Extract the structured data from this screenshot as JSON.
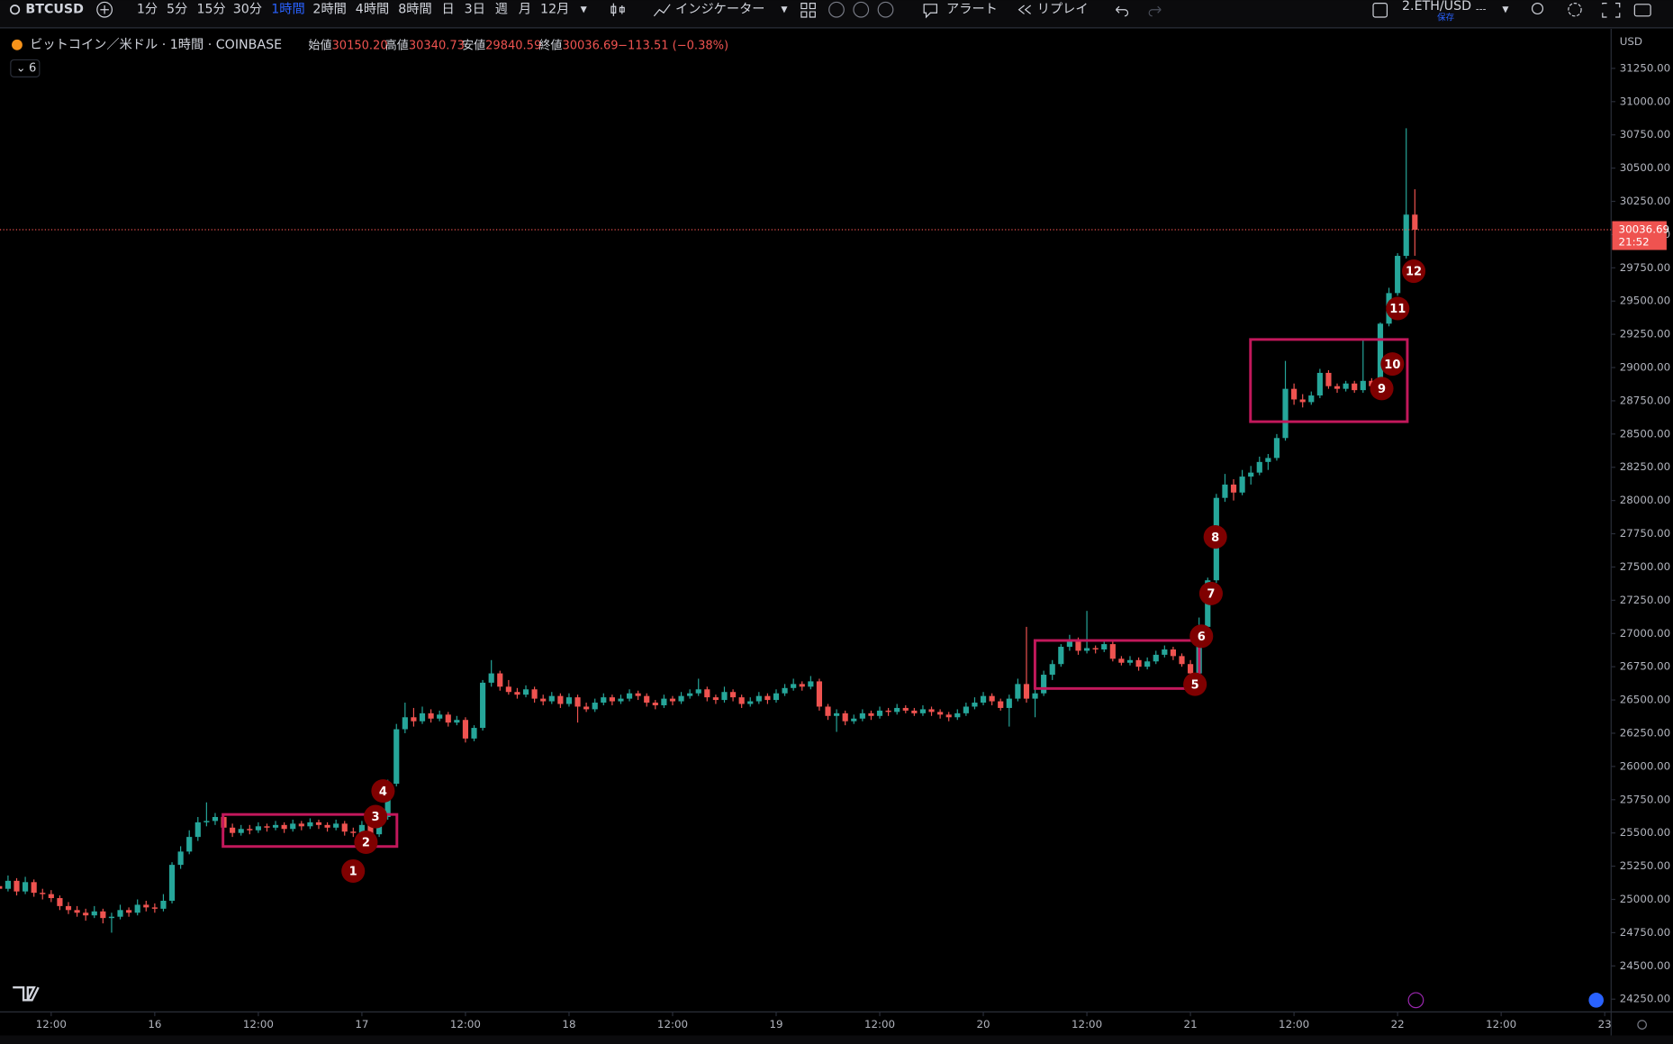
{
  "toolbar": {
    "symbol": "BTCUSD",
    "intervals": [
      "1分",
      "5分",
      "15分",
      "30分",
      "1時間",
      "2時間",
      "4時間",
      "8時間",
      "日",
      "3日",
      "週",
      "月",
      "12月"
    ],
    "indicators": "インジケーター",
    "alert": "アラート",
    "replay": "リプレイ",
    "layout": "2.ETH/USD",
    "save": "保存",
    "more": "---"
  },
  "legend": {
    "title": "ビットコイン／米ドル · 1時間 · COINBASE",
    "open_label": "始値",
    "open": "30150.20",
    "high_label": "高値",
    "high": "30340.73",
    "low_label": "安値",
    "low": "29840.59",
    "close_label": "終値",
    "close": "30036.69",
    "change": "−113.51 (−0.38%)",
    "indicator_count": "6"
  },
  "price_axis": {
    "currency": "USD",
    "last_price": "30036.69",
    "countdown": "21:52"
  },
  "chart_data": {
    "type": "candlestick",
    "up_color": "#26a69a",
    "down_color": "#ef5350",
    "ohlc": [
      [
        25100,
        25140,
        25020,
        25080
      ],
      [
        25080,
        25180,
        25060,
        25140
      ],
      [
        25140,
        25160,
        25030,
        25060
      ],
      [
        25060,
        25170,
        25040,
        25130
      ],
      [
        25130,
        25150,
        25020,
        25050
      ],
      [
        25050,
        25080,
        25000,
        25040
      ],
      [
        25040,
        25070,
        24980,
        25010
      ],
      [
        25010,
        25030,
        24920,
        24950
      ],
      [
        24950,
        24980,
        24890,
        24920
      ],
      [
        24920,
        24950,
        24870,
        24900
      ],
      [
        24900,
        24930,
        24840,
        24880
      ],
      [
        24880,
        24950,
        24860,
        24910
      ],
      [
        24910,
        24930,
        24820,
        24860
      ],
      [
        24860,
        24900,
        24750,
        24870
      ],
      [
        24870,
        24960,
        24850,
        24920
      ],
      [
        24920,
        24940,
        24870,
        24900
      ],
      [
        24900,
        25000,
        24880,
        24960
      ],
      [
        24960,
        24990,
        24910,
        24940
      ],
      [
        24940,
        24970,
        24900,
        24930
      ],
      [
        24930,
        25040,
        24910,
        24990
      ],
      [
        24990,
        25280,
        24970,
        25260
      ],
      [
        25260,
        25400,
        25230,
        25360
      ],
      [
        25360,
        25520,
        25340,
        25470
      ],
      [
        25470,
        25620,
        25440,
        25580
      ],
      [
        25580,
        25730,
        25550,
        25590
      ],
      [
        25590,
        25650,
        25560,
        25620
      ],
      [
        25620,
        25640,
        25510,
        25540
      ],
      [
        25540,
        25570,
        25470,
        25500
      ],
      [
        25500,
        25560,
        25480,
        25530
      ],
      [
        25530,
        25560,
        25490,
        25520
      ],
      [
        25520,
        25580,
        25500,
        25550
      ],
      [
        25550,
        25570,
        25510,
        25540
      ],
      [
        25540,
        25590,
        25520,
        25560
      ],
      [
        25560,
        25580,
        25500,
        25530
      ],
      [
        25530,
        25600,
        25510,
        25570
      ],
      [
        25570,
        25590,
        25520,
        25550
      ],
      [
        25550,
        25610,
        25530,
        25580
      ],
      [
        25580,
        25600,
        25530,
        25560
      ],
      [
        25560,
        25580,
        25510,
        25540
      ],
      [
        25540,
        25600,
        25520,
        25570
      ],
      [
        25570,
        25590,
        25480,
        25510
      ],
      [
        25510,
        25540,
        25470,
        25500
      ],
      [
        25500,
        25590,
        25480,
        25560
      ],
      [
        25560,
        25580,
        25460,
        25490
      ],
      [
        25490,
        25660,
        25470,
        25620
      ],
      [
        25620,
        25900,
        25600,
        25870
      ],
      [
        25870,
        26320,
        25850,
        26280
      ],
      [
        26280,
        26480,
        26250,
        26370
      ],
      [
        26370,
        26440,
        26300,
        26340
      ],
      [
        26340,
        26450,
        26320,
        26400
      ],
      [
        26400,
        26430,
        26330,
        26360
      ],
      [
        26360,
        26420,
        26340,
        26390
      ],
      [
        26390,
        26410,
        26300,
        26330
      ],
      [
        26330,
        26380,
        26310,
        26350
      ],
      [
        26350,
        26370,
        26180,
        26210
      ],
      [
        26210,
        26310,
        26190,
        26290
      ],
      [
        26290,
        26650,
        26270,
        26630
      ],
      [
        26630,
        26800,
        26600,
        26700
      ],
      [
        26700,
        26720,
        26570,
        26600
      ],
      [
        26600,
        26650,
        26540,
        26560
      ],
      [
        26560,
        26590,
        26510,
        26540
      ],
      [
        26540,
        26610,
        26520,
        26580
      ],
      [
        26580,
        26600,
        26480,
        26510
      ],
      [
        26510,
        26540,
        26460,
        26490
      ],
      [
        26490,
        26560,
        26470,
        26530
      ],
      [
        26530,
        26550,
        26440,
        26470
      ],
      [
        26470,
        26550,
        26450,
        26520
      ],
      [
        26520,
        26540,
        26330,
        26450
      ],
      [
        26450,
        26480,
        26410,
        26430
      ],
      [
        26430,
        26510,
        26410,
        26480
      ],
      [
        26480,
        26550,
        26460,
        26520
      ],
      [
        26520,
        26540,
        26460,
        26490
      ],
      [
        26490,
        26540,
        26470,
        26510
      ],
      [
        26510,
        26580,
        26490,
        26550
      ],
      [
        26550,
        26570,
        26500,
        26530
      ],
      [
        26530,
        26550,
        26450,
        26480
      ],
      [
        26480,
        26500,
        26430,
        26460
      ],
      [
        26460,
        26540,
        26440,
        26510
      ],
      [
        26510,
        26530,
        26460,
        26490
      ],
      [
        26490,
        26560,
        26470,
        26530
      ],
      [
        26530,
        26580,
        26510,
        26550
      ],
      [
        26550,
        26660,
        26530,
        26580
      ],
      [
        26580,
        26600,
        26490,
        26520
      ],
      [
        26520,
        26540,
        26470,
        26500
      ],
      [
        26500,
        26600,
        26480,
        26560
      ],
      [
        26560,
        26580,
        26490,
        26520
      ],
      [
        26520,
        26540,
        26440,
        26470
      ],
      [
        26470,
        26520,
        26450,
        26490
      ],
      [
        26490,
        26560,
        26470,
        26530
      ],
      [
        26530,
        26550,
        26470,
        26500
      ],
      [
        26500,
        26580,
        26480,
        26550
      ],
      [
        26550,
        26620,
        26530,
        26590
      ],
      [
        26590,
        26660,
        26570,
        26620
      ],
      [
        26620,
        26640,
        26570,
        26600
      ],
      [
        26600,
        26680,
        26580,
        26640
      ],
      [
        26640,
        26660,
        26420,
        26450
      ],
      [
        26450,
        26470,
        26350,
        26380
      ],
      [
        26380,
        26430,
        26260,
        26400
      ],
      [
        26400,
        26420,
        26310,
        26340
      ],
      [
        26340,
        26390,
        26320,
        26360
      ],
      [
        26360,
        26430,
        26340,
        26400
      ],
      [
        26400,
        26420,
        26350,
        26380
      ],
      [
        26380,
        26450,
        26360,
        26420
      ],
      [
        26420,
        26440,
        26380,
        26410
      ],
      [
        26410,
        26470,
        26390,
        26440
      ],
      [
        26440,
        26460,
        26400,
        26420
      ],
      [
        26420,
        26440,
        26380,
        26400
      ],
      [
        26400,
        26460,
        26380,
        26430
      ],
      [
        26430,
        26450,
        26380,
        26410
      ],
      [
        26410,
        26430,
        26360,
        26390
      ],
      [
        26390,
        26410,
        26340,
        26370
      ],
      [
        26370,
        26430,
        26350,
        26400
      ],
      [
        26400,
        26480,
        26380,
        26450
      ],
      [
        26450,
        26520,
        26430,
        26480
      ],
      [
        26480,
        26560,
        26460,
        26530
      ],
      [
        26530,
        26550,
        26460,
        26490
      ],
      [
        26490,
        26510,
        26420,
        26440
      ],
      [
        26440,
        26540,
        26300,
        26510
      ],
      [
        26510,
        26660,
        26490,
        26620
      ],
      [
        26620,
        27050,
        26480,
        26510
      ],
      [
        26510,
        26580,
        26370,
        26550
      ],
      [
        26550,
        26720,
        26530,
        26690
      ],
      [
        26690,
        26800,
        26650,
        26770
      ],
      [
        26770,
        26920,
        26750,
        26900
      ],
      [
        26900,
        26990,
        26870,
        26950
      ],
      [
        26950,
        26970,
        26840,
        26870
      ],
      [
        26870,
        27170,
        26850,
        26890
      ],
      [
        26890,
        26910,
        26850,
        26880
      ],
      [
        26880,
        26950,
        26860,
        26920
      ],
      [
        26920,
        26940,
        26790,
        26810
      ],
      [
        26810,
        26830,
        26760,
        26780
      ],
      [
        26780,
        26830,
        26760,
        26800
      ],
      [
        26800,
        26820,
        26720,
        26750
      ],
      [
        26750,
        26820,
        26730,
        26790
      ],
      [
        26790,
        26870,
        26770,
        26840
      ],
      [
        26840,
        26910,
        26820,
        26880
      ],
      [
        26880,
        26900,
        26800,
        26830
      ],
      [
        26830,
        26850,
        26750,
        26770
      ],
      [
        26770,
        26800,
        26660,
        26700
      ],
      [
        26700,
        27120,
        26680,
        27050
      ],
      [
        27050,
        27420,
        27020,
        27400
      ],
      [
        27400,
        28050,
        27380,
        28020
      ],
      [
        28020,
        28200,
        27990,
        28120
      ],
      [
        28120,
        28160,
        28000,
        28060
      ],
      [
        28060,
        28230,
        28040,
        28180
      ],
      [
        28180,
        28260,
        28120,
        28210
      ],
      [
        28210,
        28330,
        28190,
        28290
      ],
      [
        28290,
        28350,
        28230,
        28320
      ],
      [
        28320,
        28500,
        28300,
        28470
      ],
      [
        28470,
        29050,
        28450,
        28840
      ],
      [
        28840,
        28880,
        28720,
        28760
      ],
      [
        28760,
        28800,
        28700,
        28740
      ],
      [
        28740,
        28820,
        28720,
        28790
      ],
      [
        28790,
        28990,
        28770,
        28960
      ],
      [
        28960,
        28980,
        28840,
        28860
      ],
      [
        28860,
        28880,
        28810,
        28840
      ],
      [
        28840,
        28900,
        28820,
        28880
      ],
      [
        28880,
        28900,
        28810,
        28830
      ],
      [
        28830,
        29220,
        28810,
        28900
      ],
      [
        28900,
        28920,
        28830,
        28860
      ],
      [
        28860,
        29340,
        28840,
        29330
      ],
      [
        29330,
        29600,
        29310,
        29560
      ],
      [
        29560,
        29860,
        29540,
        29840
      ],
      [
        29840,
        30800,
        29820,
        30150.2
      ],
      [
        30150.2,
        30340.73,
        29840.59,
        30036.69
      ]
    ],
    "ylim": [
      24162,
      31539
    ],
    "yticks": [
      {
        "value": 24250,
        "label": "24250.00"
      },
      {
        "value": 24500,
        "label": "24500.00"
      },
      {
        "value": 24750,
        "label": "24750.00"
      },
      {
        "value": 25000,
        "label": "25000.00"
      },
      {
        "value": 25250,
        "label": "25250.00"
      },
      {
        "value": 25500,
        "label": "25500.00"
      },
      {
        "value": 25750,
        "label": "25750.00"
      },
      {
        "value": 26000,
        "label": "26000.00"
      },
      {
        "value": 26250,
        "label": "26250.00"
      },
      {
        "value": 26500,
        "label": "26500.00"
      },
      {
        "value": 26750,
        "label": "26750.00"
      },
      {
        "value": 27000,
        "label": "27000.00"
      },
      {
        "value": 27250,
        "label": "27250.00"
      },
      {
        "value": 27500,
        "label": "27500.00"
      },
      {
        "value": 27750,
        "label": "27750.00"
      },
      {
        "value": 28000,
        "label": "28000.00"
      },
      {
        "value": 28250,
        "label": "28250.00"
      },
      {
        "value": 28500,
        "label": "28500.00"
      },
      {
        "value": 28750,
        "label": "28750.00"
      },
      {
        "value": 29000,
        "label": "29000.00"
      },
      {
        "value": 29250,
        "label": "29250.00"
      },
      {
        "value": 29500,
        "label": "29500.00"
      },
      {
        "value": 29750,
        "label": "29750.00"
      },
      {
        "value": 30000,
        "label": "30000.00"
      },
      {
        "value": 30250,
        "label": "30250.00"
      },
      {
        "value": 30500,
        "label": "30500.00"
      },
      {
        "value": 30750,
        "label": "30750.00"
      },
      {
        "value": 31000,
        "label": "31000.00"
      },
      {
        "value": 31250,
        "label": "31250.00"
      }
    ],
    "xlim": [
      0.07,
      186.74
    ],
    "xticks": [
      {
        "value": 6,
        "label": "12:00"
      },
      {
        "value": 18,
        "label": "16"
      },
      {
        "value": 30,
        "label": "12:00"
      },
      {
        "value": 42,
        "label": "17"
      },
      {
        "value": 54,
        "label": "12:00"
      },
      {
        "value": 66,
        "label": "18"
      },
      {
        "value": 78,
        "label": "12:00"
      },
      {
        "value": 90,
        "label": "19"
      },
      {
        "value": 102,
        "label": "12:00"
      },
      {
        "value": 114,
        "label": "20"
      },
      {
        "value": 126,
        "label": "12:00"
      },
      {
        "value": 138,
        "label": "21"
      },
      {
        "value": 150,
        "label": "12:00"
      },
      {
        "value": 162,
        "label": "22"
      },
      {
        "value": 174,
        "label": "12:00"
      },
      {
        "value": 186,
        "label": "23"
      }
    ],
    "annotations": [
      "1",
      "2",
      "3",
      "4",
      "5",
      "6",
      "7",
      "8",
      "9",
      "10",
      "11",
      "12"
    ]
  }
}
